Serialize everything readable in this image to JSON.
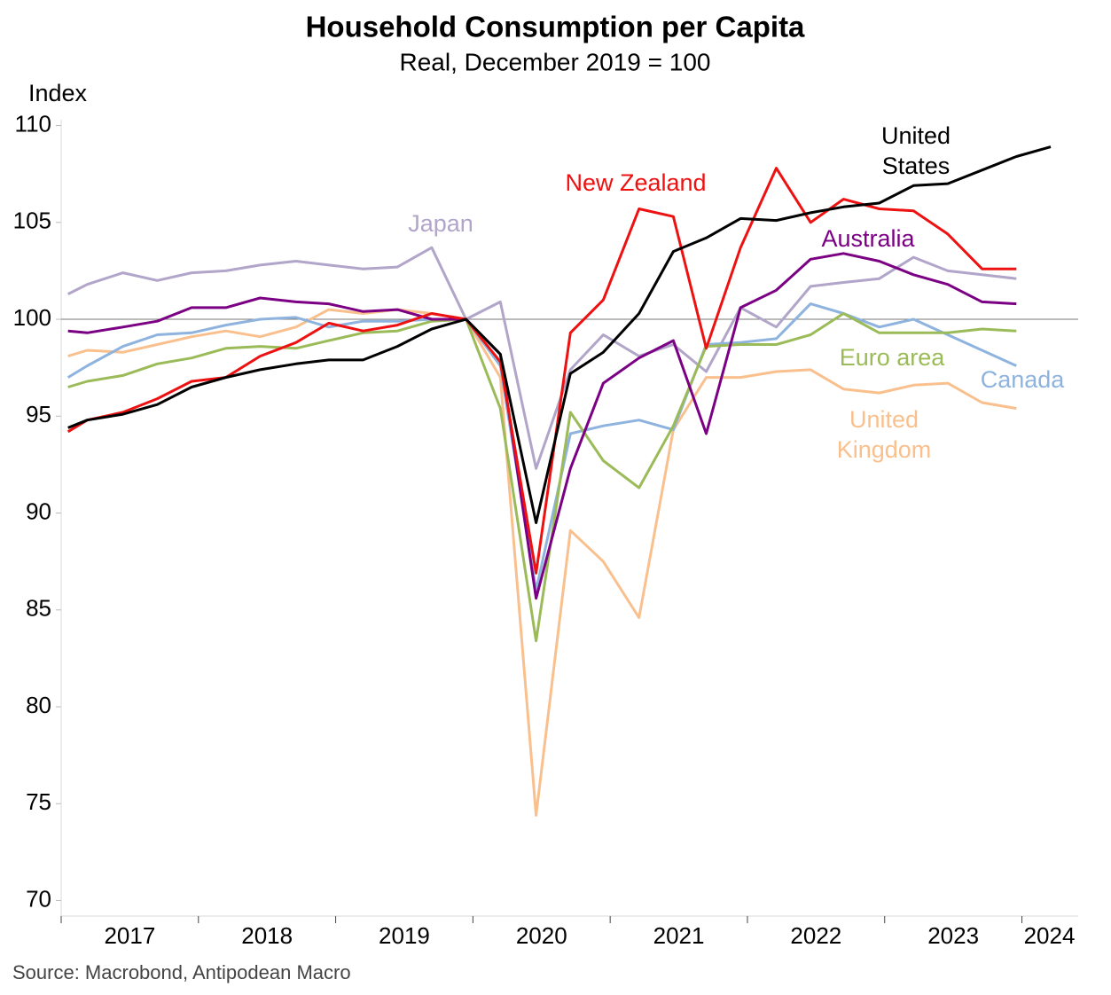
{
  "chart_data": {
    "type": "line",
    "title": "Household Consumption per Capita",
    "subtitle": "Real, December 2019 = 100",
    "y_axis_label": "Index",
    "source": "Source: Macrobond, Antipodean Macro",
    "x": [
      2017.05,
      2017.19,
      2017.45,
      2017.7,
      2017.95,
      2018.2,
      2018.45,
      2018.71,
      2018.95,
      2019.2,
      2019.45,
      2019.7,
      2019.95,
      2020.2,
      2020.46,
      2020.71,
      2020.95,
      2021.21,
      2021.46,
      2021.7,
      2021.95,
      2022.21,
      2022.46,
      2022.7,
      2022.96,
      2023.21,
      2023.46,
      2023.71,
      2023.96,
      2024.21
    ],
    "xlim": [
      2017,
      2024.41
    ],
    "xticks": [
      {
        "value": 2017.5,
        "label": "2017"
      },
      {
        "value": 2018.5,
        "label": "2018"
      },
      {
        "value": 2019.5,
        "label": "2019"
      },
      {
        "value": 2020.5,
        "label": "2020"
      },
      {
        "value": 2021.5,
        "label": "2021"
      },
      {
        "value": 2022.5,
        "label": "2022"
      },
      {
        "value": 2023.5,
        "label": "2023"
      },
      {
        "value": 2024.2,
        "label": "2024"
      }
    ],
    "ylim": [
      69.2,
      110.3
    ],
    "yticks": [
      70,
      75,
      80,
      85,
      90,
      95,
      100,
      105,
      110
    ],
    "reference_line": 100,
    "series": [
      {
        "name": "Japan",
        "color": "#b1a5c9",
        "values": [
          101.3,
          101.8,
          102.4,
          102.0,
          102.4,
          102.5,
          102.8,
          103.0,
          102.8,
          102.6,
          102.7,
          103.7,
          100,
          100.9,
          92.3,
          97.4,
          99.2,
          98.1,
          98.7,
          97.3,
          100.6,
          99.6,
          101.7,
          101.9,
          102.1,
          103.2,
          102.5,
          102.3,
          102.1,
          null
        ]
      },
      {
        "name": "United Kingdom",
        "color": "#f9c08e",
        "values": [
          98.1,
          98.4,
          98.3,
          98.7,
          99.1,
          99.4,
          99.1,
          99.6,
          100.5,
          100.3,
          100.5,
          100.3,
          100,
          97.0,
          74.4,
          89.1,
          87.5,
          84.6,
          94.3,
          97.0,
          97.0,
          97.3,
          97.4,
          96.4,
          96.2,
          96.6,
          96.7,
          95.7,
          95.4,
          null
        ]
      },
      {
        "name": "Canada",
        "color": "#8db3de",
        "values": [
          97.0,
          97.6,
          98.6,
          99.2,
          99.3,
          99.7,
          100.0,
          100.1,
          99.6,
          99.9,
          99.9,
          100.0,
          100,
          97.6,
          86.0,
          94.1,
          94.5,
          94.8,
          94.3,
          98.7,
          98.8,
          99.0,
          100.8,
          100.3,
          99.6,
          100.0,
          99.2,
          98.4,
          97.6,
          null
        ]
      },
      {
        "name": "Euro area",
        "color": "#9bbb59",
        "values": [
          96.5,
          96.8,
          97.1,
          97.7,
          98.0,
          98.5,
          98.6,
          98.5,
          98.9,
          99.3,
          99.4,
          99.9,
          100,
          95.4,
          83.4,
          95.2,
          92.7,
          91.3,
          94.5,
          98.6,
          98.7,
          98.7,
          99.2,
          100.3,
          99.3,
          99.3,
          99.3,
          99.5,
          99.4,
          null
        ]
      },
      {
        "name": "Australia",
        "color": "#7b0084",
        "values": [
          99.4,
          99.3,
          99.6,
          99.9,
          100.6,
          100.6,
          101.1,
          100.9,
          100.8,
          100.4,
          100.5,
          100.0,
          100,
          98.2,
          85.6,
          92.3,
          96.7,
          98.0,
          98.9,
          94.1,
          100.6,
          101.5,
          103.1,
          103.4,
          103.0,
          102.3,
          101.8,
          100.9,
          100.8,
          null
        ]
      },
      {
        "name": "New Zealand",
        "color": "#ee1111",
        "values": [
          94.2,
          94.8,
          95.2,
          95.9,
          96.8,
          97.0,
          98.1,
          98.8,
          99.8,
          99.4,
          99.7,
          100.3,
          100,
          97.8,
          86.9,
          99.3,
          101.0,
          105.7,
          105.3,
          98.5,
          103.7,
          107.8,
          105.0,
          106.2,
          105.7,
          105.6,
          104.4,
          102.6,
          102.6,
          null
        ]
      },
      {
        "name": "United States",
        "color": "#000000",
        "values": [
          94.4,
          94.8,
          95.1,
          95.6,
          96.5,
          97.0,
          97.4,
          97.7,
          97.9,
          97.9,
          98.6,
          99.5,
          100,
          98.2,
          89.5,
          97.2,
          98.3,
          100.3,
          103.5,
          104.2,
          105.2,
          105.1,
          105.5,
          105.8,
          106.0,
          106.9,
          107.0,
          107.7,
          108.4,
          108.9
        ]
      }
    ]
  }
}
